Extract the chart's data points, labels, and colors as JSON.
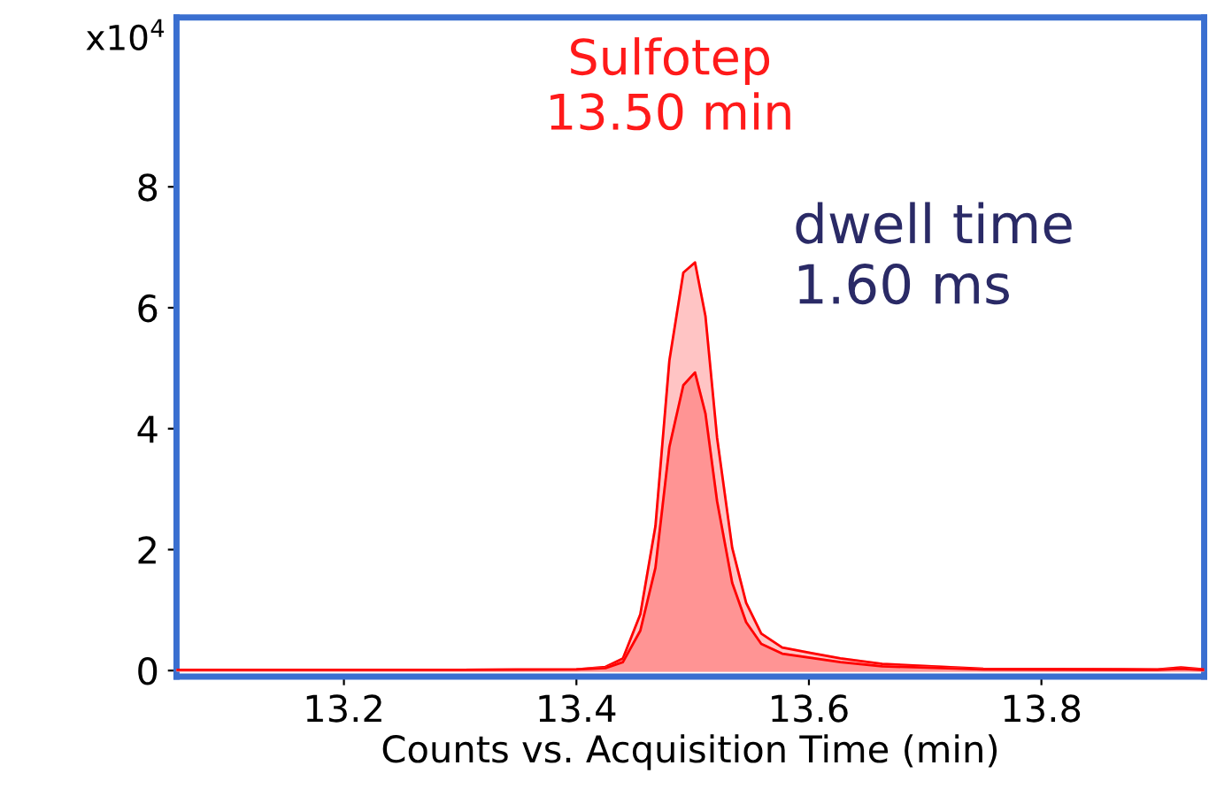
{
  "chart_data": {
    "type": "area",
    "xlabel": "Counts vs. Acquisition Time (min)",
    "annotations": [
      "x10$^{4}$",
      "Sulfotep\n13.50 min",
      "dwell time\n1.60 ms"
    ],
    "series": [
      {
        "color": "#ffc4c4",
        "x": [
          13.056,
          13.2,
          13.3,
          13.4,
          13.425,
          13.44,
          13.455,
          13.468,
          13.48,
          13.492,
          13.502,
          13.511,
          13.521,
          13.534,
          13.546,
          13.559,
          13.577,
          13.602,
          13.627,
          13.663,
          13.75,
          13.9,
          13.92,
          13.94
        ],
        "values": [
          0.01,
          0.01,
          0.01,
          0.02,
          0.06,
          0.2,
          0.93,
          2.39,
          5.13,
          6.58,
          6.75,
          5.86,
          3.85,
          2.03,
          1.12,
          0.61,
          0.38,
          0.29,
          0.2,
          0.11,
          0.03,
          0.02,
          0.05,
          0.02
        ]
      },
      {
        "color": "#ff9494",
        "x": [
          13.056,
          13.2,
          13.3,
          13.4,
          13.425,
          13.44,
          13.455,
          13.468,
          13.48,
          13.492,
          13.502,
          13.511,
          13.521,
          13.534,
          13.546,
          13.559,
          13.577,
          13.602,
          13.627,
          13.663,
          13.75,
          13.9,
          13.92,
          13.94
        ],
        "values": [
          0.01,
          0.01,
          0.01,
          0.02,
          0.04,
          0.14,
          0.66,
          1.7,
          3.7,
          4.72,
          4.93,
          4.25,
          2.8,
          1.45,
          0.8,
          0.44,
          0.28,
          0.21,
          0.14,
          0.07,
          0.02,
          0.01,
          0.03,
          0.01
        ]
      }
    ],
    "xlim": [
      13.056,
      13.94
    ],
    "xticks": [
      13.2,
      13.4,
      13.6,
      13.8
    ],
    "ylim": [
      -0.1,
      10.8
    ],
    "yticks": [
      0,
      2,
      4,
      6,
      8
    ],
    "grid": false,
    "legend": false
  }
}
